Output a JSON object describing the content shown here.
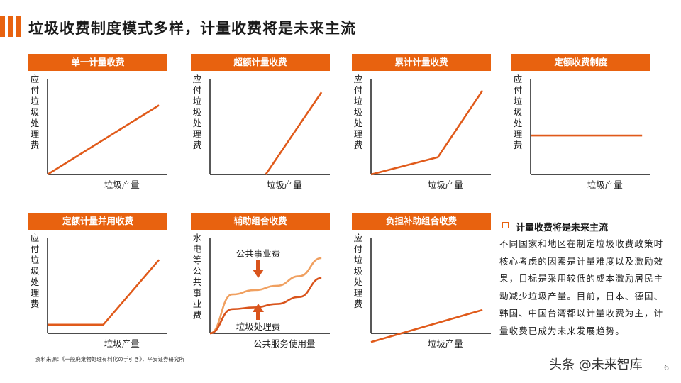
{
  "title": "垃圾收费制度模式多样，计量收费将是未来主流",
  "colors": {
    "accent": "#e8620f",
    "line": "#e05a1a",
    "axis": "#111111",
    "light_curve": "#f0a060",
    "dark_curve": "#d9541c"
  },
  "source": "资料来源：《一般廃棄物処理有料化の手引き》，平安证券研究所",
  "chart_data": [
    {
      "type": "line",
      "title": "单一计量收费",
      "ylabel": "应付垃圾处理费",
      "xlabel": "垃圾产量",
      "series": [
        {
          "x": [
            0,
            1
          ],
          "y": [
            0,
            0.8
          ]
        }
      ]
    },
    {
      "type": "line",
      "title": "超额计量收费",
      "ylabel": "应付垃圾处理费",
      "xlabel": "垃圾产量",
      "series": [
        {
          "x": [
            0.5,
            1
          ],
          "y": [
            0,
            0.95
          ]
        }
      ]
    },
    {
      "type": "line",
      "title": "累计计量收费",
      "ylabel": "应付垃圾处理费",
      "xlabel": "垃圾产量",
      "series": [
        {
          "x": [
            0,
            0.6,
            1
          ],
          "y": [
            0,
            0.2,
            0.97
          ]
        }
      ]
    },
    {
      "type": "line",
      "title": "定额收费制度",
      "ylabel": "应付垃圾处理费",
      "xlabel": "垃圾产量",
      "series": [
        {
          "x": [
            0,
            1
          ],
          "y": [
            0.45,
            0.45
          ]
        }
      ]
    },
    {
      "type": "line",
      "title": "定额计量并用收费",
      "ylabel": "应付垃圾处理费",
      "xlabel": "垃圾产量",
      "series": [
        {
          "x": [
            0,
            0.5,
            1
          ],
          "y": [
            0.1,
            0.1,
            0.85
          ]
        }
      ]
    },
    {
      "type": "line",
      "title": "辅助组合收费",
      "ylabel": "水电等公共事业费",
      "xlabel": "公共服务使用量",
      "annotations": [
        "公共事业费",
        "垃圾处理费"
      ],
      "series": [
        {
          "name": "公共事业费",
          "x": [
            0,
            0.2,
            0.4,
            0.6,
            0.8,
            1
          ],
          "y": [
            0,
            0.45,
            0.5,
            0.55,
            0.66,
            0.87
          ]
        },
        {
          "name": "垃圾处理费",
          "x": [
            0,
            0.2,
            0.4,
            0.6,
            0.8,
            1
          ],
          "y": [
            0,
            0.28,
            0.3,
            0.34,
            0.42,
            0.64
          ]
        }
      ]
    },
    {
      "type": "line",
      "title": "负担补助组合收费",
      "ylabel": "应付垃圾处理费",
      "xlabel": "垃圾产量",
      "series": [
        {
          "x": [
            0,
            1
          ],
          "y": [
            -0.1,
            0.27
          ]
        }
      ]
    }
  ],
  "note": {
    "title": "计量收费将是未来主流",
    "body": "不同国家和地区在制定垃圾收费政策时核心考虑的因素是计量难度以及激励效果，目标是采用较低的成本激励居民主动减少垃圾产量。目前，日本、德国、韩国、中国台湾都以计量收费为主，计量收费已成为未来发展趋势。"
  },
  "watermark": "头条 @未来智库",
  "page_number": "6"
}
